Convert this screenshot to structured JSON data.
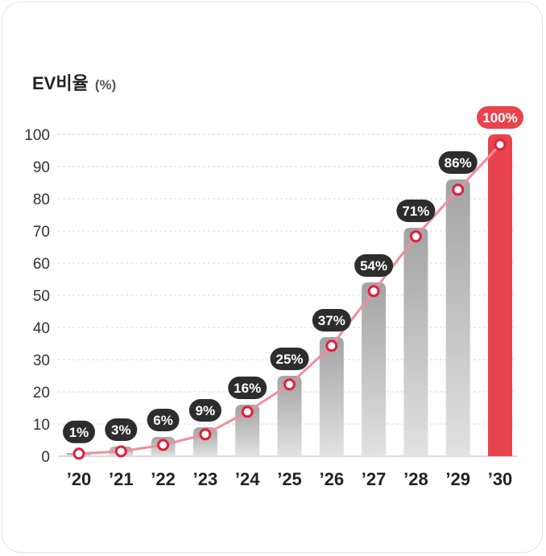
{
  "chart_data": {
    "type": "bar",
    "title": "EV비율",
    "unit": "(%)",
    "categories": [
      "’20",
      "’21",
      "’22",
      "’23",
      "’24",
      "’25",
      "’26",
      "’27",
      "’28",
      "’29",
      "’30"
    ],
    "values": [
      1,
      3,
      6,
      9,
      16,
      25,
      37,
      54,
      71,
      86,
      100
    ],
    "labels": [
      "1%",
      "3%",
      "6%",
      "9%",
      "16%",
      "25%",
      "37%",
      "54%",
      "71%",
      "86%",
      "100%"
    ],
    "line_values": [
      0.8,
      1.5,
      3.5,
      6.8,
      13.8,
      22.3,
      34.3,
      51.3,
      68.3,
      82.8,
      96.8
    ],
    "ylim": [
      0,
      100
    ],
    "yticks": [
      0,
      10,
      20,
      30,
      40,
      50,
      60,
      70,
      80,
      90,
      100
    ],
    "grid": true,
    "colors": {
      "bar_top": "#a3a3a3",
      "bar_bottom": "#e2e2e2",
      "highlight_bar": "#e8444e",
      "line": "#ef8f9e",
      "marker": "#e1203a",
      "label_bg": "#2d2d2d",
      "highlight_label_bg": "#e8444e"
    }
  }
}
